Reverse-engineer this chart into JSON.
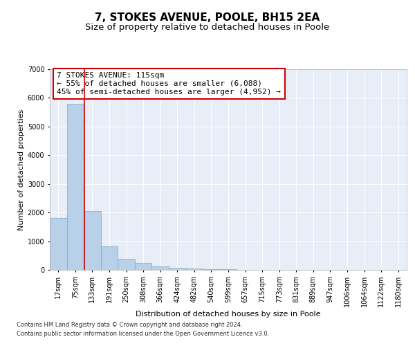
{
  "title": "7, STOKES AVENUE, POOLE, BH15 2EA",
  "subtitle": "Size of property relative to detached houses in Poole",
  "xlabel": "Distribution of detached houses by size in Poole",
  "ylabel": "Number of detached properties",
  "bin_labels": [
    "17sqm",
    "75sqm",
    "133sqm",
    "191sqm",
    "250sqm",
    "308sqm",
    "366sqm",
    "424sqm",
    "482sqm",
    "540sqm",
    "599sqm",
    "657sqm",
    "715sqm",
    "773sqm",
    "831sqm",
    "889sqm",
    "947sqm",
    "1006sqm",
    "1064sqm",
    "1122sqm",
    "1180sqm"
  ],
  "bar_heights": [
    1800,
    5800,
    2050,
    830,
    380,
    230,
    120,
    80,
    60,
    30,
    20,
    0,
    0,
    0,
    0,
    0,
    0,
    0,
    0,
    0,
    0
  ],
  "bar_color": "#b8d0e8",
  "bar_edge_color": "#7aaac8",
  "vline_x_index": 1.52,
  "vline_color": "#cc0000",
  "ylim": [
    0,
    7000
  ],
  "annotation_text": "7 STOKES AVENUE: 115sqm\n← 55% of detached houses are smaller (6,088)\n45% of semi-detached houses are larger (4,952) →",
  "annotation_box_color": "#cc0000",
  "footnote1": "Contains HM Land Registry data © Crown copyright and database right 2024.",
  "footnote2": "Contains public sector information licensed under the Open Government Licence v3.0.",
  "bg_color": "#e8eef8",
  "grid_color": "#ffffff",
  "title_fontsize": 11,
  "subtitle_fontsize": 9.5,
  "label_fontsize": 8,
  "tick_fontsize": 7,
  "annot_fontsize": 8
}
